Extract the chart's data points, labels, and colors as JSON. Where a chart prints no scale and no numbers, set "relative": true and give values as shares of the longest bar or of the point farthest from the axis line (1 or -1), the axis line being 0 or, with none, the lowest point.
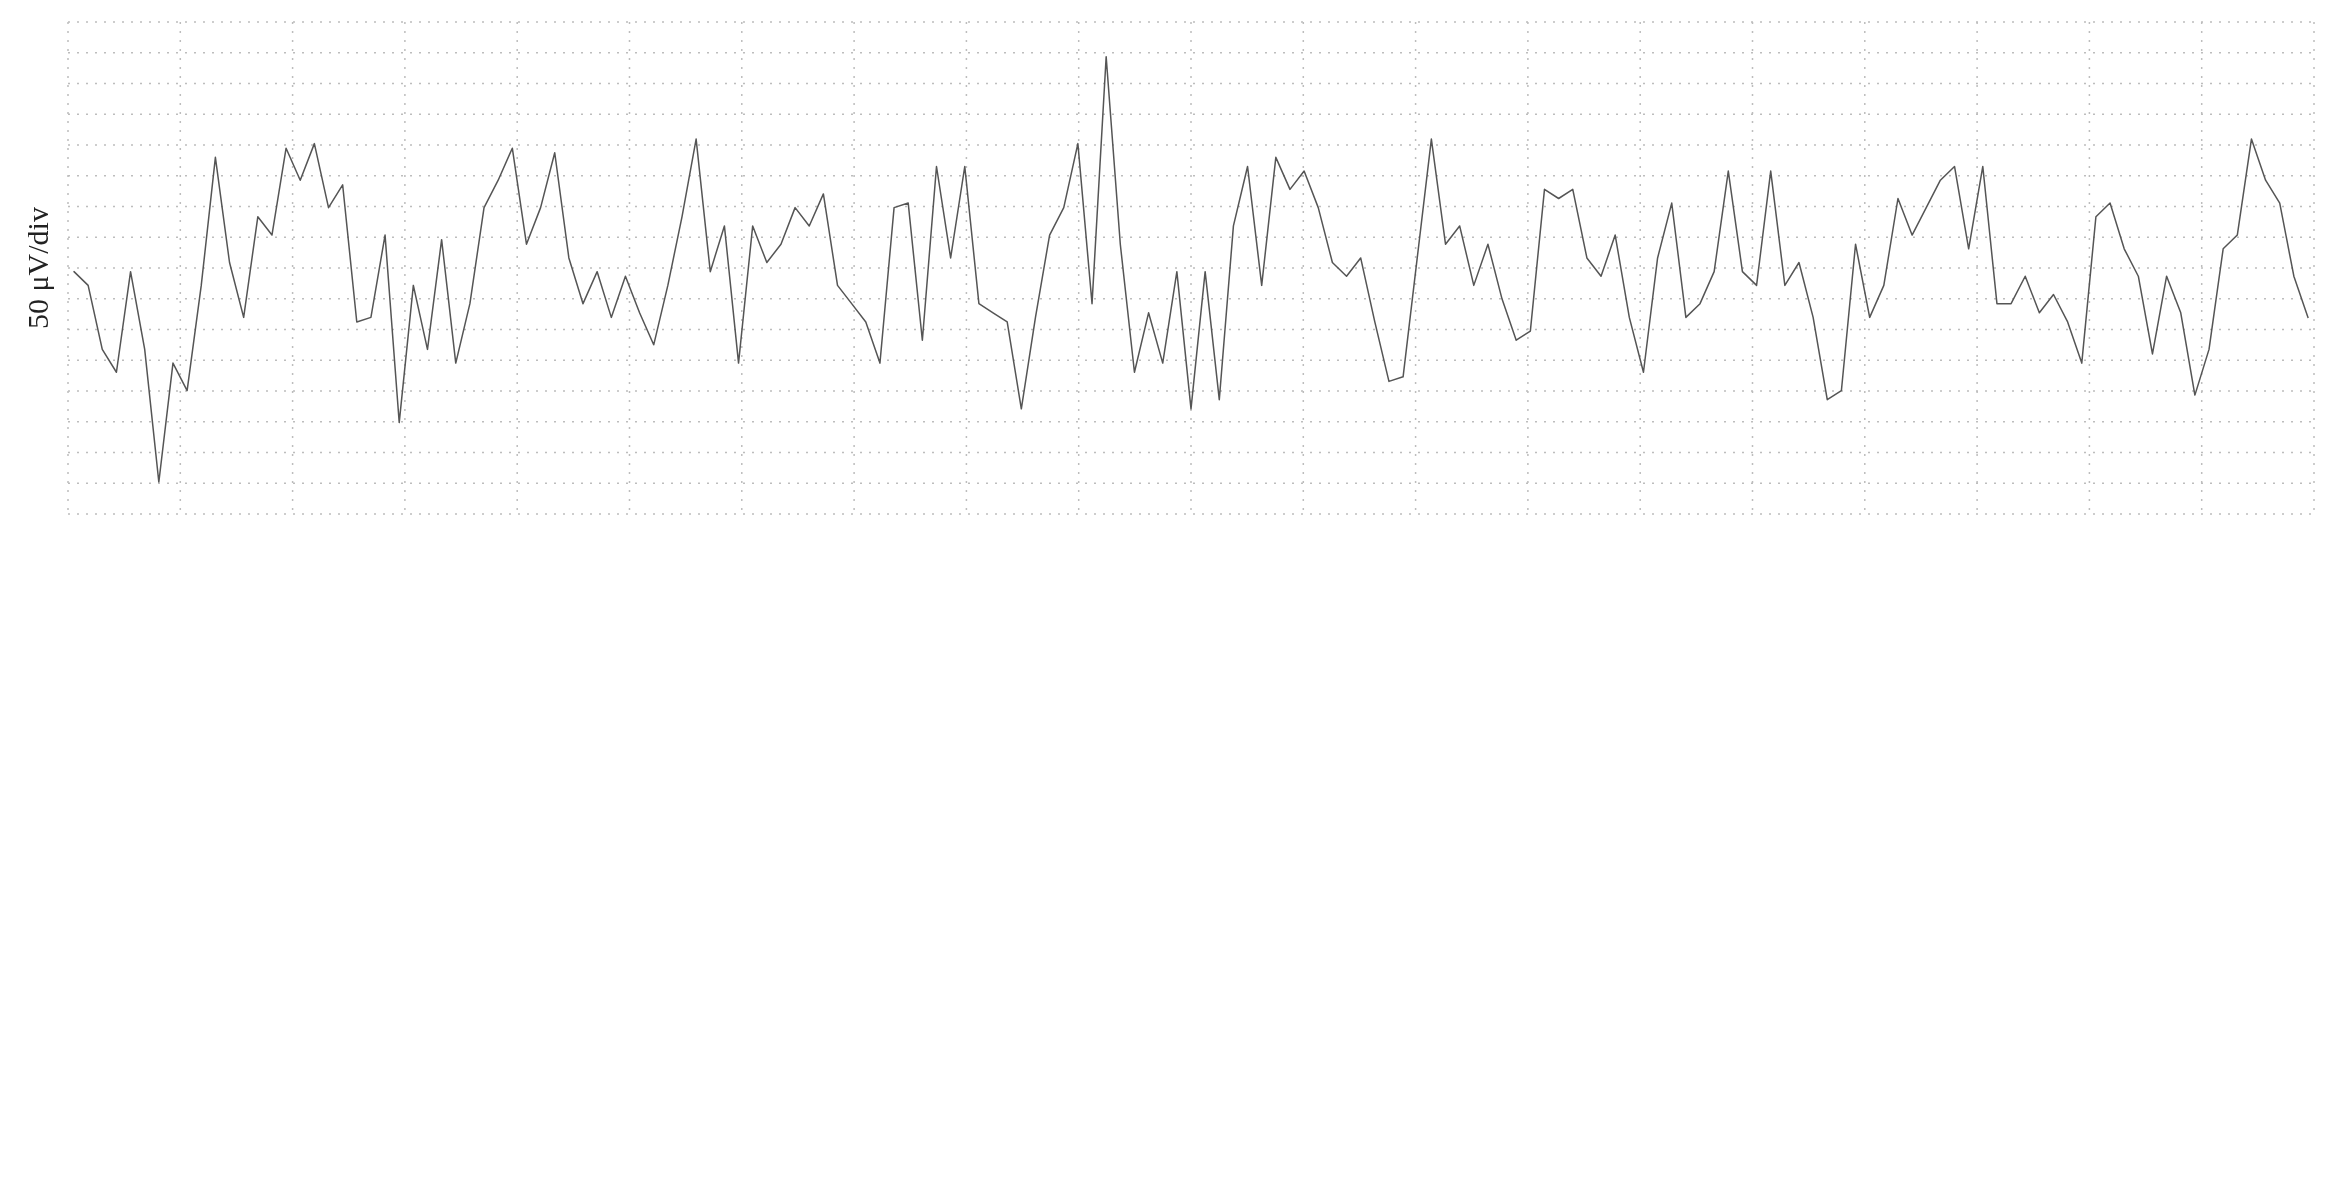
{
  "chart_data": {
    "type": "line",
    "ylabel": "50 μV/div",
    "relative": true,
    "grid": true,
    "line_style": "solid",
    "marker": "none",
    "categories": [
      null,
      null,
      null,
      null,
      null,
      null,
      null,
      null,
      null,
      null,
      null,
      null,
      null,
      null,
      null,
      null,
      null,
      null,
      null,
      null,
      null,
      null,
      null,
      null,
      null,
      null,
      null,
      null,
      null,
      null,
      null,
      null,
      null,
      null,
      null,
      null,
      null,
      null,
      null,
      null,
      null,
      null,
      null,
      null,
      null,
      null,
      null,
      null,
      null,
      null,
      null,
      null,
      null,
      null,
      null,
      null,
      null,
      null,
      null,
      null,
      null,
      null,
      null,
      null,
      null,
      null,
      null,
      null,
      null,
      null,
      null,
      null,
      null,
      null,
      null,
      null,
      null,
      null,
      null,
      null,
      null,
      null,
      null,
      null,
      null,
      null,
      null,
      null,
      null,
      null,
      null,
      null,
      null,
      null,
      null,
      null,
      null,
      null,
      null,
      null,
      null,
      null,
      null,
      null,
      null,
      null,
      null,
      null,
      null,
      null,
      null,
      null,
      null,
      null,
      null,
      null,
      null,
      null,
      null,
      null,
      null,
      null,
      null,
      null,
      null,
      null,
      null,
      null,
      null,
      null,
      null,
      null,
      null,
      null,
      null,
      null,
      null,
      null,
      null,
      null,
      null,
      null,
      null,
      null,
      null,
      null,
      null,
      null,
      null,
      null,
      null,
      null,
      null,
      null,
      null,
      null,
      null,
      null,
      null
    ],
    "series": [
      {
        "color": "#555555",
        "values": [
          0.53,
          0.5,
          0.36,
          0.31,
          0.53,
          0.36,
          0.07,
          0.33,
          0.27,
          0.5,
          0.78,
          0.55,
          0.43,
          0.65,
          0.61,
          0.8,
          0.73,
          0.81,
          0.67,
          0.72,
          0.42,
          0.43,
          0.61,
          0.2,
          0.5,
          0.36,
          0.6,
          0.33,
          0.46,
          0.67,
          0.73,
          0.8,
          0.59,
          0.67,
          0.79,
          0.56,
          0.46,
          0.53,
          0.43,
          0.52,
          0.44,
          0.37,
          0.5,
          0.65,
          0.82,
          0.53,
          0.63,
          0.33,
          0.63,
          0.55,
          0.59,
          0.67,
          0.63,
          0.7,
          0.5,
          0.46,
          0.42,
          0.33,
          0.67,
          0.68,
          0.38,
          0.76,
          0.56,
          0.76,
          0.46,
          0.44,
          0.42,
          0.23,
          0.43,
          0.61,
          0.67,
          0.81,
          0.46,
          1,
          0.59,
          0.31,
          0.44,
          0.33,
          0.53,
          0.23,
          0.53,
          0.25,
          0.63,
          0.76,
          0.5,
          0.78,
          0.71,
          0.75,
          0.67,
          0.55,
          0.52,
          0.56,
          0.42,
          0.29,
          0.3,
          0.56,
          0.82,
          0.59,
          0.63,
          0.5,
          0.59,
          0.47,
          0.38,
          0.4,
          0.71,
          0.69,
          0.71,
          0.56,
          0.52,
          0.61,
          0.43,
          0.31,
          0.56,
          0.68,
          0.43,
          0.46,
          0.53,
          0.75,
          0.53,
          0.5,
          0.75,
          0.5,
          0.55,
          0.43,
          0.25,
          0.27,
          0.59,
          0.43,
          0.5,
          0.69,
          0.61,
          0.67,
          0.73,
          0.76,
          0.58,
          0.76,
          0.46,
          0.46,
          0.52,
          0.44,
          0.48,
          0.42,
          0.33,
          0.65,
          0.68,
          0.58,
          0.52,
          0.35,
          0.52,
          0.44,
          0.26,
          0.36,
          0.58,
          0.61,
          0.82,
          0.73,
          0.68,
          0.52,
          0.43
        ]
      }
    ]
  }
}
